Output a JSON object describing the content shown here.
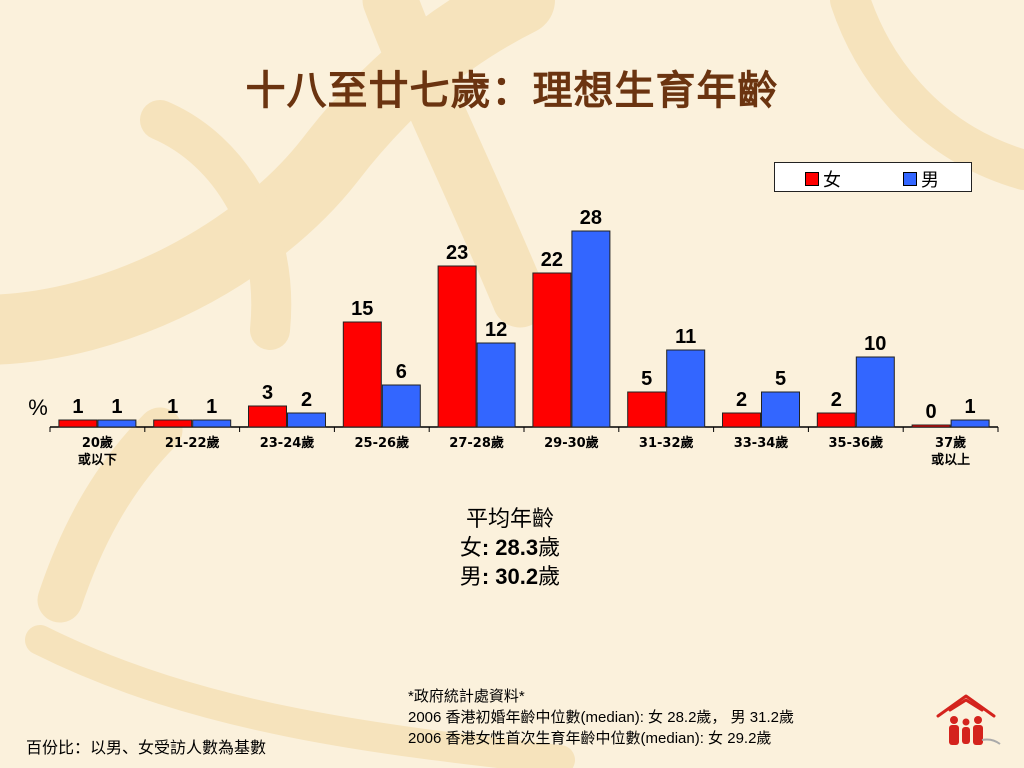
{
  "title": "十八至廿七歲：理想生育年齡",
  "chart_data": {
    "type": "bar",
    "categories": [
      "20歲\n或以下",
      "21-22歲",
      "23-24歲",
      "25-26歲",
      "27-28歲",
      "29-30歲",
      "31-32歲",
      "33-34歲",
      "35-36歲",
      "37歲\n或以上"
    ],
    "series": [
      {
        "name": "女",
        "values": [
          1,
          1,
          3,
          15,
          23,
          22,
          5,
          2,
          2,
          0
        ],
        "color": "#ff0000"
      },
      {
        "name": "男",
        "values": [
          1,
          1,
          2,
          6,
          12,
          28,
          11,
          5,
          10,
          1
        ],
        "color": "#3366ff"
      }
    ],
    "ylabel": "%",
    "ylim": [
      0,
      28
    ],
    "legend": "top-right",
    "grid": false
  },
  "average": {
    "heading": "平均年齡",
    "female_label": "女",
    "female_value": ": 28.3",
    "female_unit": "歲",
    "male_label": "男",
    "male_value": ": 30.2",
    "male_unit": "歲"
  },
  "source": {
    "line1": "*政府統計處資料*",
    "line2": "2006 香港初婚年齡中位數(median): 女 28.2歲， 男 31.2歲",
    "line3": "2006 香港女性首次生育年齡中位數(median): 女 29.2歲"
  },
  "footnote": "百份比：以男、女受訪人數為基數",
  "colors": {
    "female": "#ff0000",
    "male": "#3366ff",
    "title": "#6b3410",
    "background": "#fbf1dc"
  }
}
